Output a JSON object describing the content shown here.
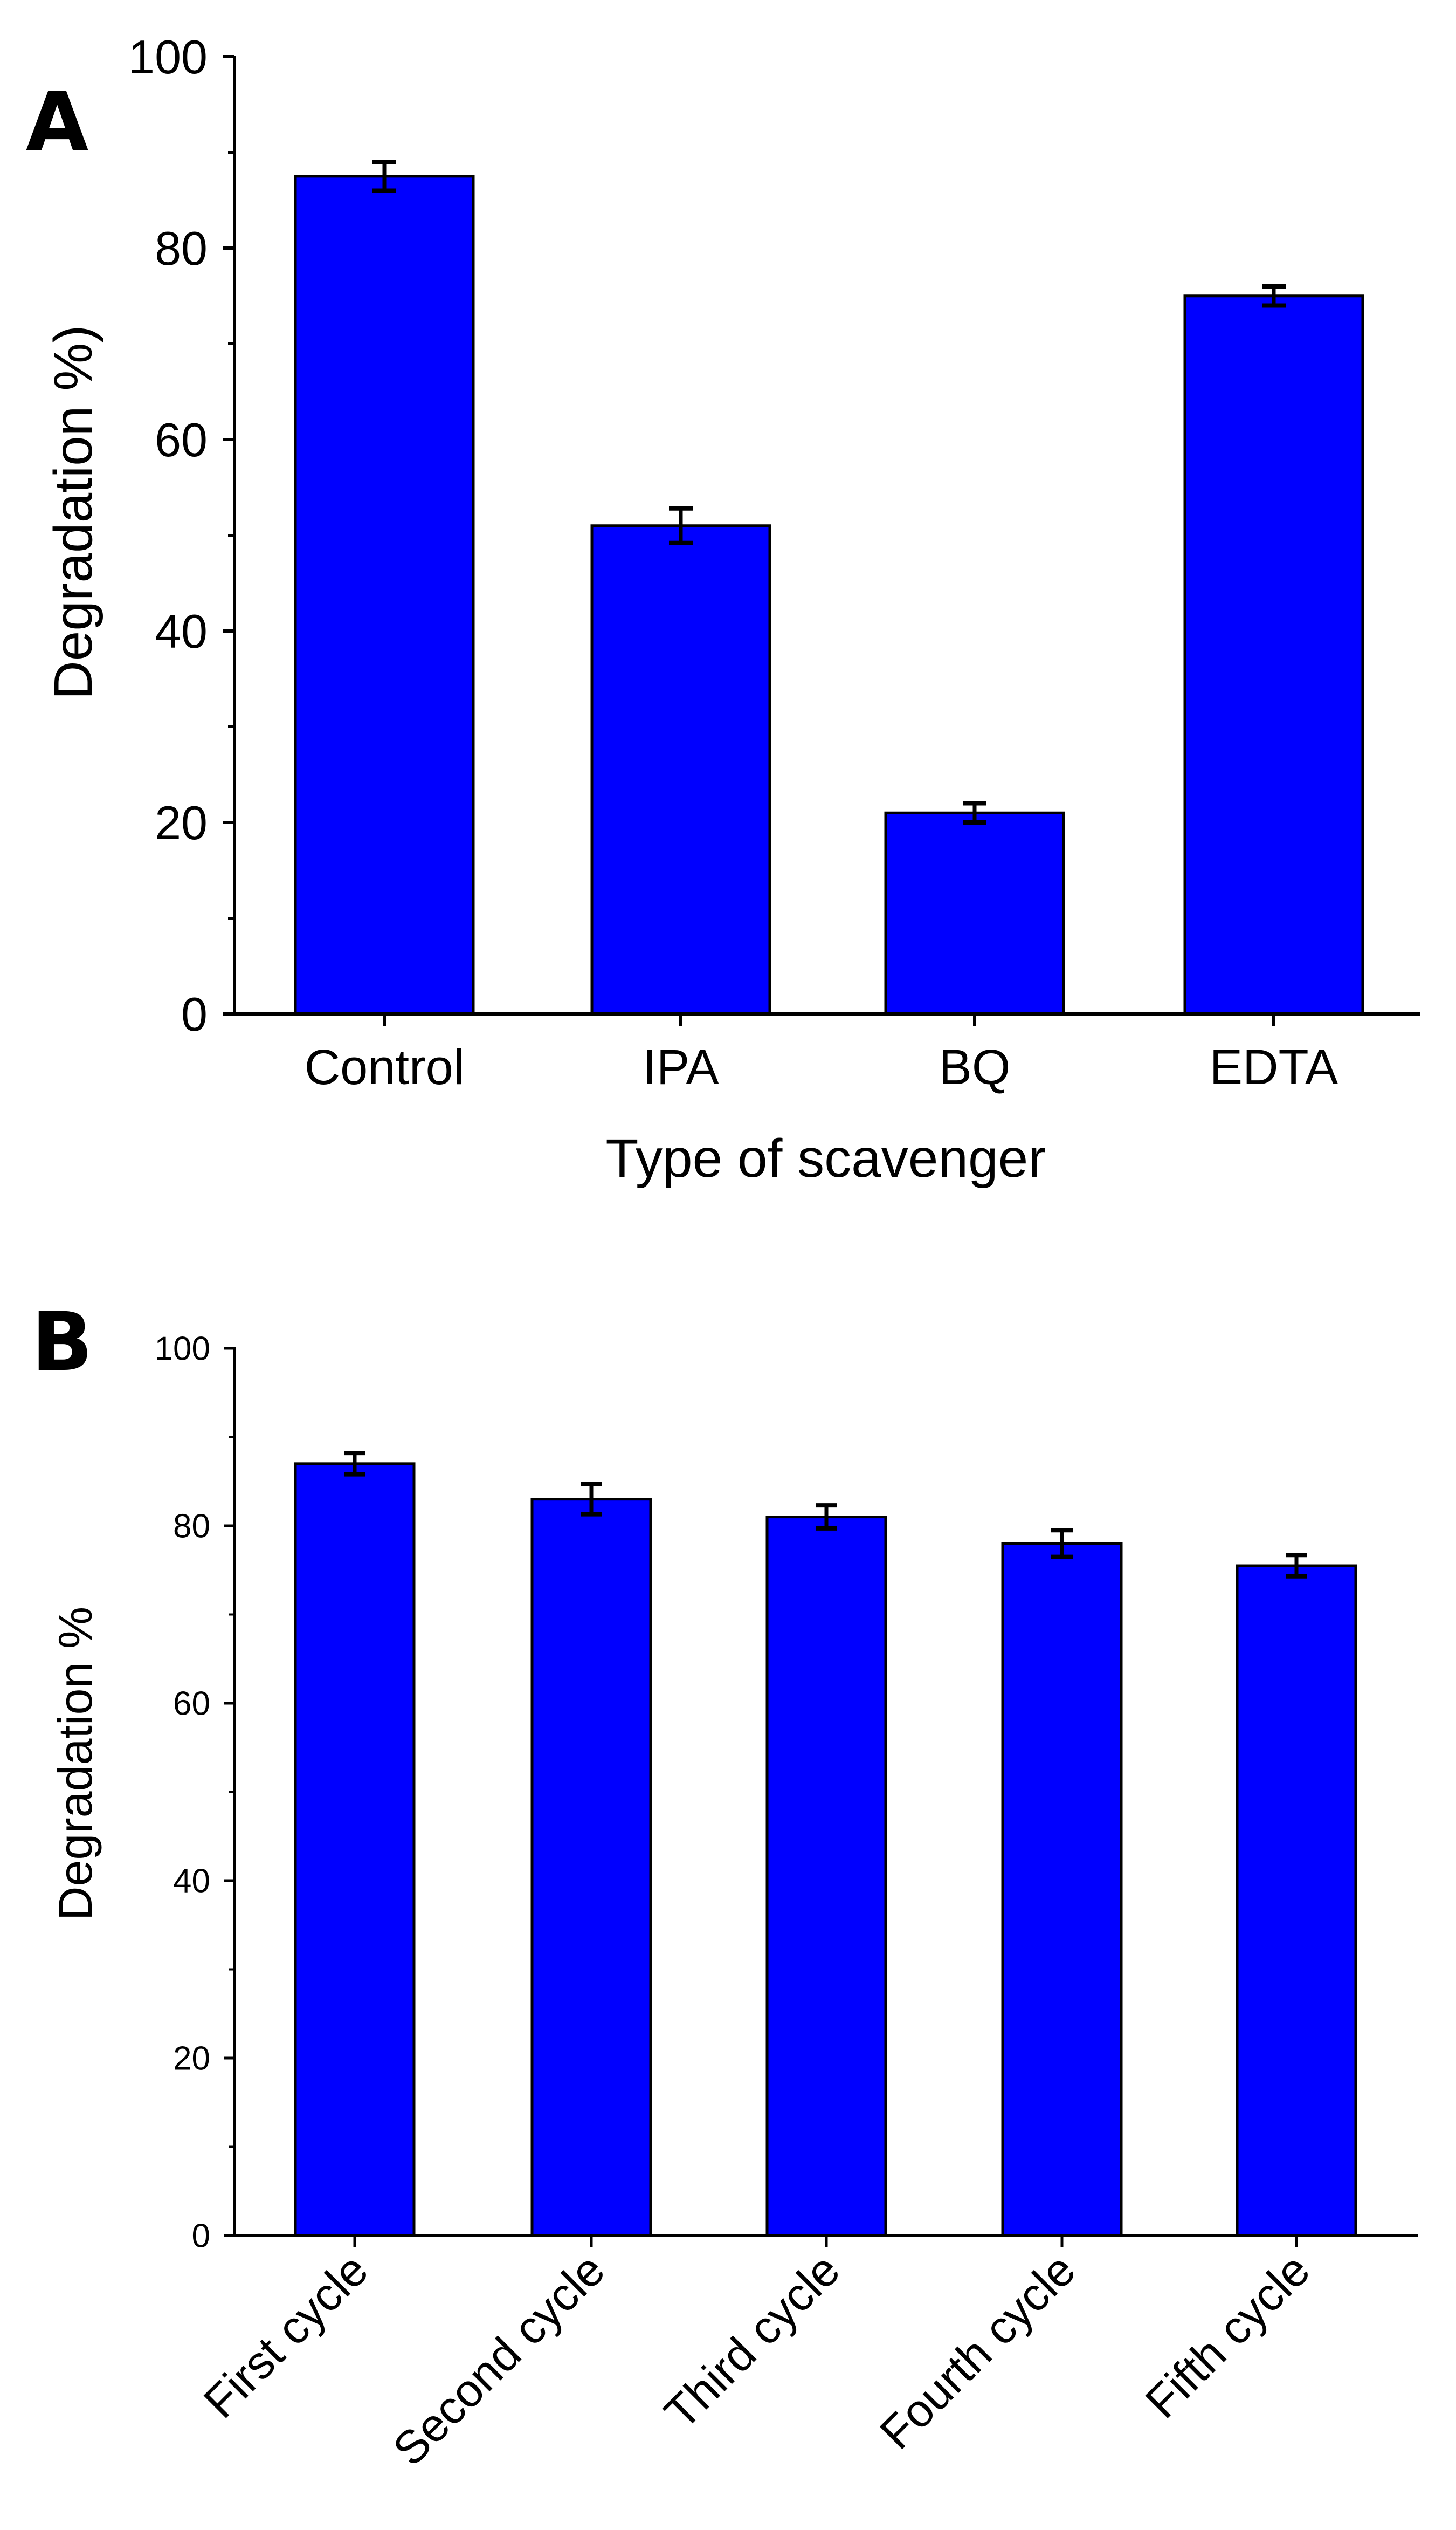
{
  "colors": {
    "bar_fill": "#0000ff",
    "bar_stroke": "#000000",
    "axis": "#000000",
    "background": "#ffffff"
  },
  "chart_data": [
    {
      "panel_label": "A",
      "type": "bar",
      "title": "",
      "xlabel": "Type of scavenger",
      "ylabel": "Degradation %)",
      "categories": [
        "Control",
        "IPA",
        "BQ",
        "EDTA"
      ],
      "values": [
        87.5,
        51.0,
        21.0,
        75.0
      ],
      "errors": [
        1.5,
        1.8,
        1.0,
        1.0
      ],
      "ylim": [
        0,
        100
      ],
      "yticks": [
        0,
        20,
        40,
        60,
        80,
        100
      ],
      "ytick_labels": [
        "0",
        "20",
        "40",
        "60",
        "80",
        "100"
      ],
      "grid": false,
      "tick_rotation": 0
    },
    {
      "panel_label": "B",
      "type": "bar",
      "title": "",
      "xlabel": "",
      "ylabel": "Degradation %",
      "categories": [
        "First cycle",
        "Second cycle",
        "Third cycle",
        "Fourth cycle",
        "Fifth cycle"
      ],
      "values": [
        87.0,
        83.0,
        81.0,
        78.0,
        75.5
      ],
      "errors": [
        1.2,
        1.7,
        1.3,
        1.5,
        1.2
      ],
      "ylim": [
        0,
        100
      ],
      "yticks": [
        0,
        20,
        40,
        60,
        80,
        100
      ],
      "ytick_labels": [
        "0",
        "20",
        "40",
        "60",
        "80",
        "100"
      ],
      "grid": false,
      "tick_rotation": -45
    }
  ]
}
